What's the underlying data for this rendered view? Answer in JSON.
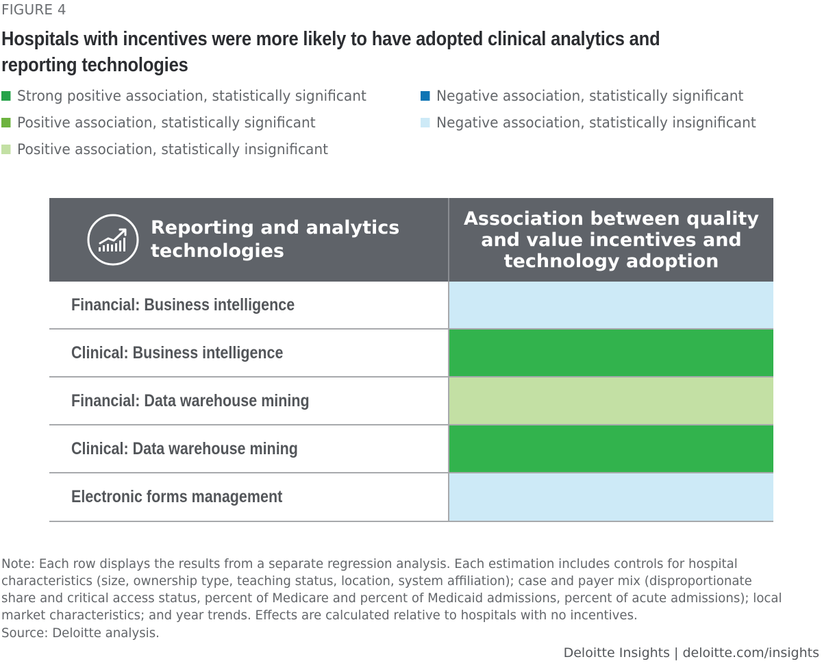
{
  "figure_label": "FIGURE 4",
  "title": "Hospitals with incentives were more likely to have adopted clinical analytics and reporting technologies",
  "legend": [
    {
      "key": "strong_pos_sig",
      "label": "Strong positive association, statistically significant",
      "color": "#26a34a"
    },
    {
      "key": "pos_sig",
      "label": "Positive association, statistically significant",
      "color": "#6db33f"
    },
    {
      "key": "pos_insig",
      "label": "Positive association, statistically insignificant",
      "color": "#c3e0a4"
    },
    {
      "key": "neg_sig",
      "label": "Negative association, statistically significant",
      "color": "#0f75b4"
    },
    {
      "key": "neg_insig",
      "label": "Negative association, statistically insignificant",
      "color": "#cdeaf7"
    }
  ],
  "table": {
    "header_left": "Reporting and analytics technologies",
    "header_right": "Association between quality and value incentives and technology adoption",
    "header_icon": "chart-growth-icon"
  },
  "chart_data": {
    "type": "table",
    "title": "Hospitals with incentives were more likely to have adopted clinical analytics and reporting technologies",
    "columns": [
      "Reporting and analytics technologies",
      "Association between quality and value incentives and technology adoption"
    ],
    "rows": [
      {
        "label": "Financial: Business intelligence",
        "association": "Negative association, statistically insignificant",
        "color": "#cdeaf7"
      },
      {
        "label": "Clinical: Business intelligence",
        "association": "Strong positive association, statistically significant",
        "color": "#32b34d"
      },
      {
        "label": "Financial: Data warehouse mining",
        "association": "Positive association, statistically insignificant",
        "color": "#c3e0a4"
      },
      {
        "label": "Clinical: Data warehouse mining",
        "association": "Strong positive association, statistically significant",
        "color": "#32b34d"
      },
      {
        "label": "Electronic forms management",
        "association": "Negative association, statistically insignificant",
        "color": "#cdeaf7"
      }
    ]
  },
  "note": "Note: Each row displays the results from a separate regression analysis. Each estimation includes controls for hospital characteristics (size, ownership type, teaching status, location, system affiliation); case and payer mix (disproportionate share and critical access status, percent of Medicare and percent of Medicaid admissions, percent of acute admissions); local market characteristics; and year trends. Effects are calculated relative to hospitals with no incentives.",
  "source": "Source: Deloitte analysis.",
  "footer": "Deloitte Insights | deloitte.com/insights"
}
